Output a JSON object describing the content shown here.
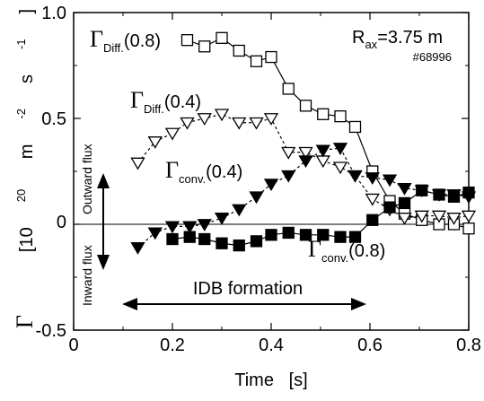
{
  "chart_data": {
    "type": "line",
    "xlabel": "Time   [s]",
    "ylabel_symbol": "Γ",
    "ylabel_unit": "[10",
    "ylabel_unit_exp": "20",
    "ylabel_unit_rest": " m",
    "ylabel_unit_exp2": "-2",
    "ylabel_unit_s": "s",
    "ylabel_unit_exp3": "-1",
    "ylabel_unit_close": "]",
    "xlim": [
      0,
      0.8
    ],
    "ylim": [
      -0.5,
      1.0
    ],
    "xticks": [
      "0",
      "0.2",
      "0.4",
      "0.6",
      "0.8"
    ],
    "yticks": [
      "-0.5",
      "0",
      "0.5",
      "1.0"
    ],
    "series": [
      {
        "name": "Γ Diff. (0.8)",
        "label_main": "Γ",
        "label_sub": "Diff.",
        "label_arg": "(0.8)",
        "marker": "square-open",
        "line": "solid",
        "x": [
          0.23,
          0.265,
          0.3,
          0.335,
          0.37,
          0.4,
          0.435,
          0.47,
          0.505,
          0.54,
          0.57,
          0.605,
          0.64,
          0.67,
          0.705,
          0.74,
          0.77,
          0.8
        ],
        "y": [
          0.87,
          0.84,
          0.88,
          0.82,
          0.77,
          0.79,
          0.64,
          0.56,
          0.52,
          0.51,
          0.46,
          0.25,
          0.11,
          0.05,
          0.02,
          0.0,
          0.0,
          -0.02
        ]
      },
      {
        "name": "Γ Diff. (0.4)",
        "label_main": "Γ",
        "label_sub": "Diff.",
        "label_arg": "(0.4)",
        "marker": "triangle-down-open",
        "line": "dashed",
        "x": [
          0.13,
          0.165,
          0.2,
          0.23,
          0.265,
          0.3,
          0.335,
          0.37,
          0.4,
          0.435,
          0.47,
          0.505,
          0.54,
          0.57,
          0.605,
          0.64,
          0.67,
          0.705,
          0.74,
          0.77,
          0.8
        ],
        "y": [
          0.29,
          0.39,
          0.43,
          0.48,
          0.5,
          0.52,
          0.48,
          0.48,
          0.5,
          0.34,
          0.34,
          0.3,
          0.27,
          0.23,
          0.12,
          0.07,
          0.03,
          0.04,
          0.04,
          0.03,
          0.04
        ]
      },
      {
        "name": "Γ conv. (0.4)",
        "label_main": "Γ",
        "label_sub": "conv.",
        "label_arg": "(0.4)",
        "marker": "triangle-down-filled",
        "line": "dashed",
        "x": [
          0.13,
          0.165,
          0.2,
          0.235,
          0.265,
          0.3,
          0.335,
          0.37,
          0.4,
          0.435,
          0.47,
          0.505,
          0.54,
          0.57,
          0.605,
          0.64,
          0.67,
          0.705,
          0.74,
          0.77,
          0.8
        ],
        "y": [
          -0.11,
          -0.04,
          -0.01,
          -0.01,
          0.0,
          0.03,
          0.07,
          0.13,
          0.19,
          0.23,
          0.3,
          0.35,
          0.36,
          0.23,
          0.22,
          0.21,
          0.17,
          0.16,
          0.14,
          0.14,
          0.13
        ]
      },
      {
        "name": "Γ conv. (0.8)",
        "label_main": "Γ",
        "label_sub": "conv.",
        "label_arg": "(0.8)",
        "marker": "square-filled",
        "line": "solid",
        "x": [
          0.2,
          0.235,
          0.265,
          0.3,
          0.335,
          0.37,
          0.4,
          0.435,
          0.47,
          0.505,
          0.54,
          0.57,
          0.605,
          0.64,
          0.67,
          0.705,
          0.74,
          0.77,
          0.8
        ],
        "y": [
          -0.07,
          -0.06,
          -0.07,
          -0.09,
          -0.1,
          -0.08,
          -0.05,
          -0.04,
          -0.05,
          -0.05,
          -0.06,
          -0.06,
          0.02,
          0.08,
          0.1,
          0.16,
          0.14,
          0.13,
          0.15
        ]
      }
    ],
    "annotations": {
      "rax_main": "R",
      "rax_sub": "ax",
      "rax_value": "=3.75 m",
      "shot": "#68996",
      "outward": "Outward flux",
      "inward": "Inward flux",
      "idb": "IDB formation"
    }
  }
}
